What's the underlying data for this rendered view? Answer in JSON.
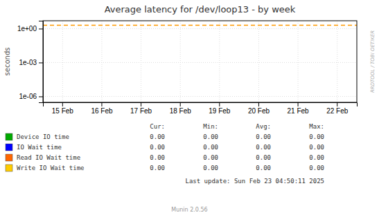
{
  "chart_data": {
    "type": "line",
    "title": "Average latency for /dev/loop13 - by week",
    "y_label": "seconds",
    "categories": [
      "15 Feb",
      "16 Feb",
      "17 Feb",
      "18 Feb",
      "19 Feb",
      "20 Feb",
      "21 Feb",
      "22 Feb"
    ],
    "log": "y",
    "ylim": [
      3e-07,
      5.0
    ],
    "yticks": [
      {
        "value": 1e-06,
        "label": "1e-06"
      },
      {
        "value": 0.001,
        "label": "1e-03"
      },
      {
        "value": 1,
        "label": "1e+00"
      }
    ],
    "grid": true,
    "hline": {
      "value": 2.0,
      "color": "#ff9900",
      "line_style": "dashed"
    },
    "stats_headers": [
      "Cur:",
      "Min:",
      "Avg:",
      "Max:"
    ],
    "series": [
      {
        "name": "Device IO time",
        "color": "#00aa00",
        "stats": [
          {
            "value": 0,
            "label": "0.00"
          },
          {
            "value": 0,
            "label": "0.00"
          },
          {
            "value": 0,
            "label": "0.00"
          },
          {
            "value": 0,
            "label": "0.00"
          }
        ]
      },
      {
        "name": "IO Wait time",
        "color": "#0000ff",
        "stats": [
          {
            "value": 0,
            "label": "0.00"
          },
          {
            "value": 0,
            "label": "0.00"
          },
          {
            "value": 0,
            "label": "0.00"
          },
          {
            "value": 0,
            "label": "0.00"
          }
        ]
      },
      {
        "name": "Read IO Wait time",
        "color": "#ff6600",
        "stats": [
          {
            "value": 0,
            "label": "0.00"
          },
          {
            "value": 0,
            "label": "0.00"
          },
          {
            "value": 0,
            "label": "0.00"
          },
          {
            "value": 0,
            "label": "0.00"
          }
        ]
      },
      {
        "name": "Write IO Wait time",
        "color": "#ffcc00",
        "stats": [
          {
            "value": 0,
            "label": "0.00"
          },
          {
            "value": 0,
            "label": "0.00"
          },
          {
            "value": 0,
            "label": "0.00"
          },
          {
            "value": 0,
            "label": "0.00"
          }
        ]
      }
    ],
    "annotations": [
      "RRDTOOL / TOBI OETIKER",
      "Last update: Sun Feb 23 04:50:11 2025",
      "Munin 2.0.56"
    ]
  }
}
